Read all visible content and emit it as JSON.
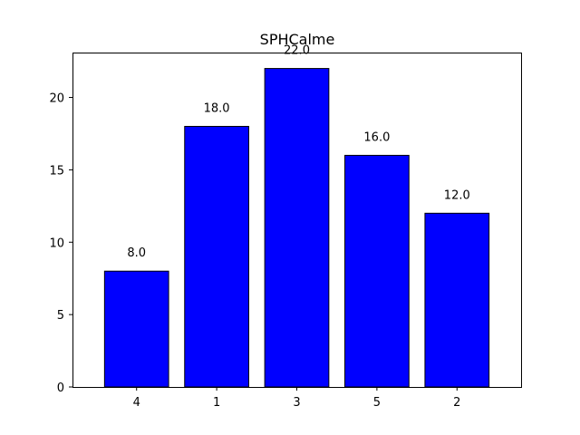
{
  "chart_data": {
    "type": "bar",
    "title": "SPHCalme",
    "xlabel": "",
    "ylabel": "",
    "categories": [
      "4",
      "1",
      "3",
      "5",
      "2"
    ],
    "values": [
      8.0,
      18.0,
      22.0,
      16.0,
      12.0
    ],
    "data_labels": [
      "8.0",
      "18.0",
      "22.0",
      "16.0",
      "12.0"
    ],
    "y_ticks": [
      0,
      5,
      10,
      15,
      20
    ],
    "ylim": [
      0,
      23.1
    ],
    "grid": false,
    "bar_color": "#0000ff",
    "edge_color": "#000000"
  }
}
